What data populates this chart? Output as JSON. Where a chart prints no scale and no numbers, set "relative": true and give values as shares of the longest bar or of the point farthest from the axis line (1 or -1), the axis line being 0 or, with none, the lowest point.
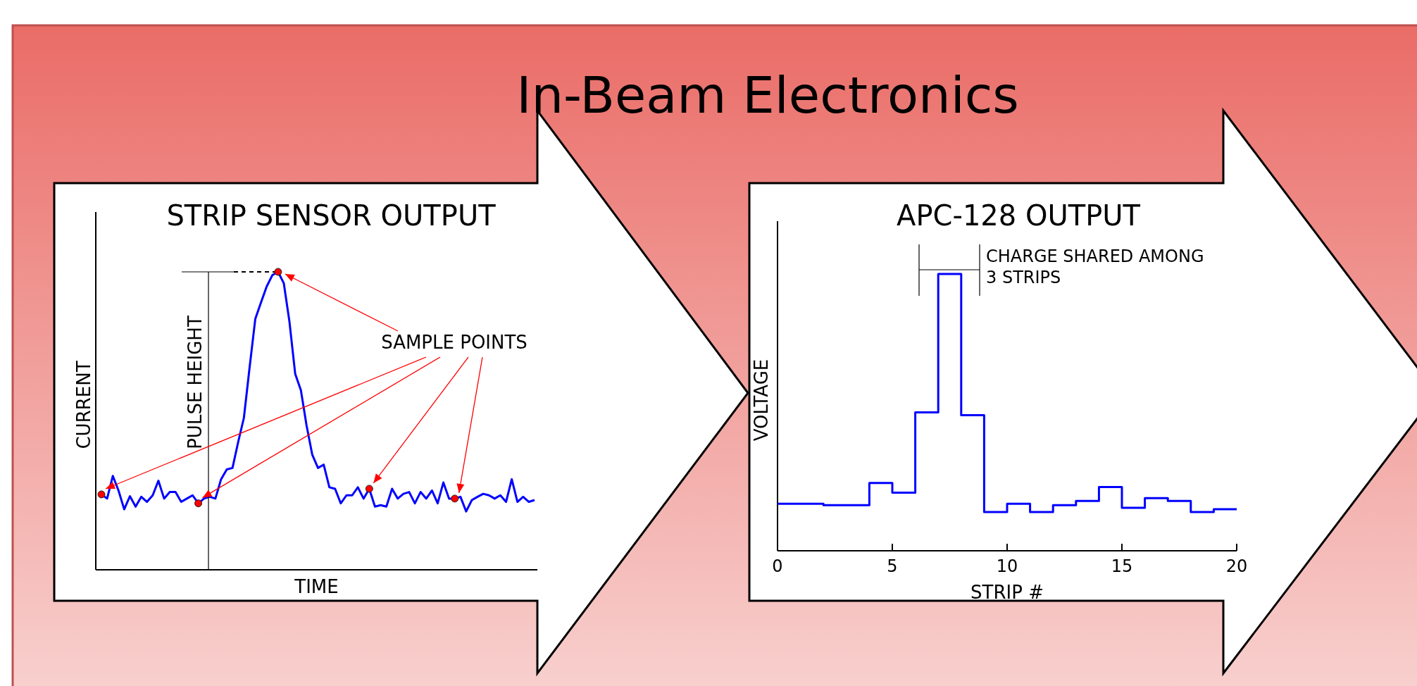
{
  "chart_data": [
    {
      "type": "other",
      "title": "In-Beam Electronics"
    },
    {
      "type": "line",
      "title": "STRIP SENSOR OUTPUT",
      "xlabel": "TIME",
      "ylabel": "CURRENT",
      "relative": true,
      "categories": [
        null,
        null,
        null,
        null,
        null,
        null,
        null,
        null,
        null,
        null,
        null,
        null,
        null,
        null,
        null,
        null,
        null,
        null,
        null,
        null,
        null,
        null,
        null,
        null,
        null,
        null,
        null,
        null,
        null,
        null,
        null,
        null,
        null,
        null,
        null,
        null,
        null,
        null,
        null,
        null,
        null,
        null,
        null,
        null,
        null,
        null,
        null,
        null,
        null,
        null,
        null,
        null,
        null,
        null,
        null,
        null,
        null,
        null,
        null,
        null,
        null,
        null,
        null,
        null,
        null,
        null,
        null,
        null,
        null,
        null,
        null,
        null,
        null,
        null,
        null,
        null,
        null
      ],
      "series": [
        {
          "color": "#0000ff",
          "values": [
            0.253,
            0.239,
            0.315,
            0.266,
            0.203,
            0.247,
            0.212,
            0.245,
            0.228,
            0.25,
            0.299,
            0.239,
            0.261,
            0.261,
            0.228,
            0.239,
            0.25,
            0.223,
            0.239,
            0.245,
            0.239,
            0.304,
            0.337,
            0.342,
            0.429,
            0.51,
            0.679,
            0.842,
            0.897,
            0.951,
            0.989,
            1.0,
            0.962,
            0.832,
            0.658,
            0.603,
            0.484,
            0.386,
            0.342,
            0.353,
            0.277,
            0.272,
            0.223,
            0.25,
            0.25,
            0.277,
            0.239,
            0.272,
            0.212,
            0.217,
            0.212,
            0.272,
            0.239,
            0.255,
            0.261,
            0.223,
            0.261,
            0.239,
            0.266,
            0.223,
            0.293,
            0.239,
            0.239,
            0.245,
            0.196,
            0.234,
            0.245,
            0.255,
            0.25,
            0.239,
            0.25,
            0.228,
            0.304,
            0.228,
            0.245,
            0.228,
            0.234
          ]
        }
      ],
      "annotations": [
        "PULSE HEIGHT",
        "SAMPLE POINTS"
      ]
    },
    {
      "type": "step",
      "title": "APC-128 OUTPUT",
      "xlabel": "STRIP #",
      "ylabel": "VOLTAGE",
      "relative": true,
      "x": [
        0,
        1,
        2,
        3,
        4,
        5,
        6,
        7,
        8,
        9,
        10,
        11,
        12,
        13,
        14,
        15,
        16,
        17,
        18,
        19,
        20
      ],
      "series": [
        {
          "color": "#0000ff",
          "values": [
            0.17,
            0.17,
            0.165,
            0.165,
            0.245,
            0.21,
            0.5,
            1.0,
            0.49,
            0.14,
            0.17,
            0.14,
            0.165,
            0.18,
            0.23,
            0.155,
            0.19,
            0.18,
            0.14,
            0.15,
            0.15
          ]
        }
      ],
      "xlim": [
        0,
        20
      ],
      "xticks": [
        0,
        5,
        10,
        15,
        20
      ],
      "annotations": [
        "CHARGE SHARED AMONG 3 STRIPS"
      ]
    }
  ]
}
